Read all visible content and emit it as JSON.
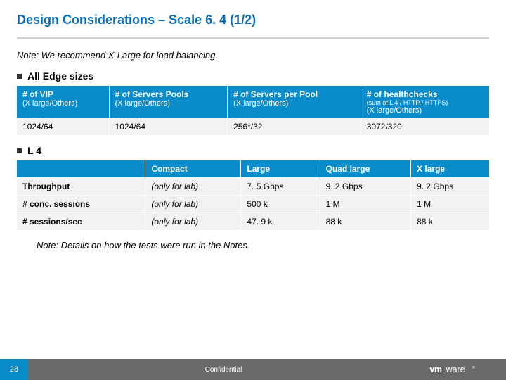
{
  "title": "Design Considerations – Scale 6. 4 (1/2)",
  "note_top": "Note: We recommend X-Large for load balancing.",
  "bullet1": "All Edge sizes",
  "bullet2": "L 4",
  "table1": {
    "headers": [
      {
        "main": "# of VIP",
        "sub": "(X large/Others)"
      },
      {
        "main": "# of Servers Pools",
        "sub": "(X large/Others)"
      },
      {
        "main": "# of Servers per Pool",
        "sub": "(X large/Others)"
      },
      {
        "main": "# of healthchecks",
        "sub_small": "(sum of L 4 / HTTP / HTTPS)",
        "sub2": "(X large/Others)"
      }
    ],
    "row": [
      "1024/64",
      "1024/64",
      "256*/32",
      "3072/320"
    ]
  },
  "table2": {
    "cols": [
      "",
      "Compact",
      "Large",
      "Quad large",
      "X large"
    ],
    "rows": [
      {
        "label": "Throughput",
        "cells": [
          "(only for lab)",
          "7. 5 Gbps",
          "9. 2 Gbps",
          "9. 2 Gbps"
        ]
      },
      {
        "label": "# conc. sessions",
        "cells": [
          "(only for lab)",
          "500 k",
          "1 M",
          "1 M"
        ]
      },
      {
        "label": "# sessions/sec",
        "cells": [
          "(only for lab)",
          "47. 9 k",
          "88 k",
          "88 k"
        ]
      }
    ]
  },
  "note_bottom": "Note: Details on how the tests were run in the Notes.",
  "footer": {
    "page": "28",
    "confidential": "Confidential",
    "logo_text": "vmware"
  }
}
